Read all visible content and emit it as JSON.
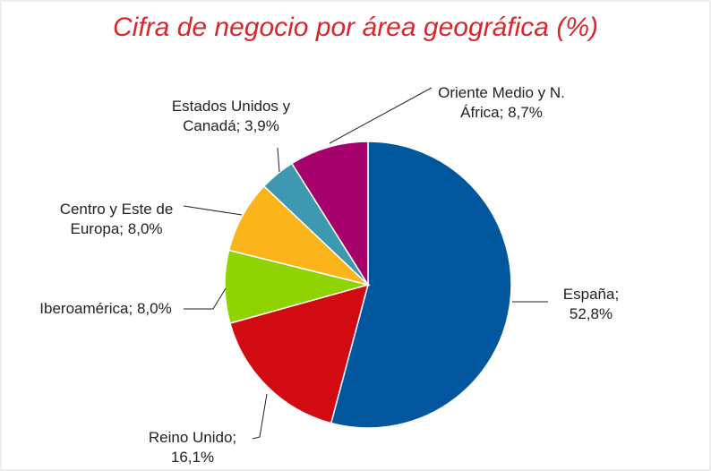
{
  "chart_data": {
    "type": "pie",
    "title": "Cifra de negocio por área geográfica (%)",
    "categories": [
      "España;",
      "Reino Unido;",
      "Iberoamérica;",
      "Centro y Este de Europa;",
      "Estados Unidos y Canadá;",
      "Oriente Medio y N. África;"
    ],
    "values": [
      52.8,
      16.1,
      8.0,
      8.0,
      3.9,
      8.7
    ],
    "value_labels": [
      "52,8%",
      "16,1%",
      "8,0%",
      "8,0%",
      "3,9%",
      "8,7%"
    ],
    "colors": [
      "#00579e",
      "#d20a11",
      "#8fd400",
      "#fbb41a",
      "#3e98b0",
      "#a6006d"
    ]
  }
}
